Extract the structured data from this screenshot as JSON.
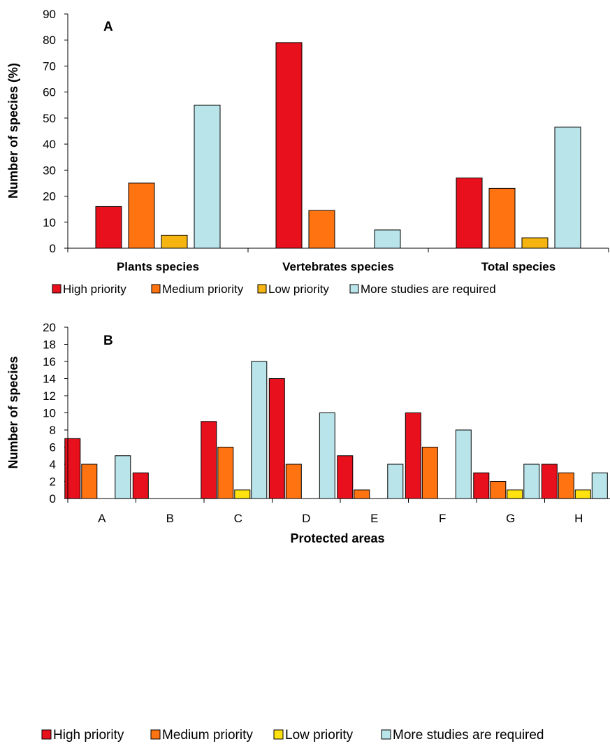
{
  "chart_data": [
    {
      "type": "bar",
      "panel_label": "A",
      "categories": [
        "Plants species",
        "Vertebrates species",
        "Total species"
      ],
      "ylabel": "Number of species (%)",
      "xlabel": "",
      "ylim": [
        0,
        90
      ],
      "yticks": [
        0,
        10,
        20,
        30,
        40,
        50,
        60,
        70,
        80,
        90
      ],
      "grid": false,
      "legend_position": "bottom",
      "series": [
        {
          "name": "High priority",
          "color": "#e8101c",
          "values": [
            16,
            79,
            27
          ]
        },
        {
          "name": "Medium priority",
          "color": "#ff7410",
          "values": [
            25,
            14.5,
            23
          ]
        },
        {
          "name": "Low priority",
          "color": "#f5b40f",
          "values": [
            5,
            0,
            4
          ]
        },
        {
          "name": "More studies are required",
          "color": "#b8e4ea",
          "values": [
            55,
            7,
            46.5
          ]
        }
      ]
    },
    {
      "type": "bar",
      "panel_label": "B",
      "categories": [
        "A",
        "B",
        "C",
        "D",
        "E",
        "F",
        "G",
        "H"
      ],
      "ylabel": "Number of species",
      "xlabel": "Protected areas",
      "ylim": [
        0,
        20
      ],
      "yticks": [
        0,
        2,
        4,
        6,
        8,
        10,
        12,
        14,
        16,
        18,
        20
      ],
      "grid": false,
      "legend_position": "bottom",
      "series": [
        {
          "name": "High priority",
          "color": "#e8101c",
          "values": [
            7,
            3,
            9,
            14,
            5,
            10,
            3,
            4
          ]
        },
        {
          "name": "Medium priority",
          "color": "#ff7410",
          "values": [
            4,
            0,
            6,
            4,
            1,
            6,
            2,
            3
          ]
        },
        {
          "name": "Low priority",
          "color": "#ffe20f",
          "values": [
            0,
            0,
            1,
            0,
            0,
            0,
            1,
            1
          ]
        },
        {
          "name": "More studies are required",
          "color": "#b8e4ea",
          "values": [
            5,
            0,
            16,
            10,
            4,
            8,
            4,
            3
          ]
        }
      ]
    }
  ]
}
